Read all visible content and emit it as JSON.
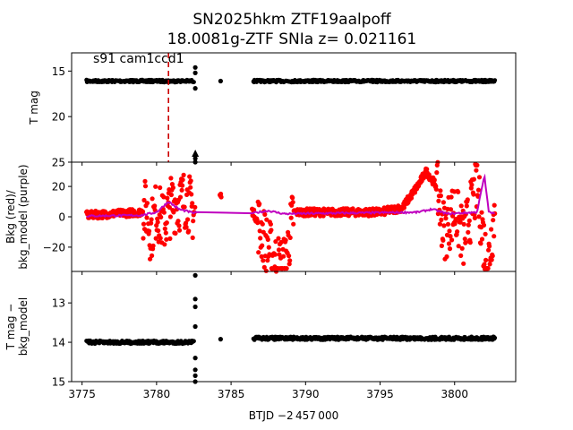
{
  "title_line1": "SN2025hkm  ZTF19aalpoff",
  "title_line2": "18.0081g-ZTF SNIa z= 0.021161",
  "annotation": "s91 cam1ccd1",
  "xlabel": "BTJD −2 457 000",
  "colors": {
    "black": "#000000",
    "red": "#ff0000",
    "purple": "#bf00bf",
    "marker": "#cc0000"
  },
  "chart_data": [
    {
      "type": "scatter",
      "ylabel": "T mag",
      "xlim": [
        3774.3,
        3804.1
      ],
      "ylim": [
        25,
        13
      ],
      "yinverted": true,
      "xticks": [
        3775,
        3780,
        3785,
        3790,
        3795,
        3800
      ],
      "yticks": [
        15,
        20,
        25
      ],
      "vline": {
        "x": 3780.8,
        "style": "dashed",
        "color": "red"
      },
      "series": [
        {
          "segments": [
            [
              3775.3,
              3782.5,
              16.1
            ],
            [
              3786.5,
              3802.7,
              16.1
            ]
          ],
          "color": "black"
        },
        {
          "points": [
            [
              3784.3,
              16.1
            ],
            [
              3782.6,
              14.6
            ],
            [
              3782.6,
              15.2
            ],
            [
              3782.6,
              16.9
            ],
            [
              3782.6,
              24.6
            ],
            [
              3782.6,
              25.0
            ]
          ],
          "color": "black"
        }
      ]
    },
    {
      "type": "scatter",
      "ylabel": "Bkg (red)/ bkg_model (purple)",
      "xlim": [
        3774.3,
        3804.1
      ],
      "ylim": [
        -36,
        36
      ],
      "xticks": [
        3775,
        3780,
        3785,
        3790,
        3795,
        3800
      ],
      "yticks": [
        -20,
        0,
        20
      ],
      "series": [
        {
          "name": "Bkg",
          "color": "red",
          "profile": [
            [
              3775.3,
              1
            ],
            [
              3778.9,
              3
            ],
            [
              3779.3,
              5
            ],
            [
              3779.6,
              -10
            ],
            [
              3780.0,
              5
            ],
            [
              3780.5,
              -5
            ],
            [
              3781.0,
              8
            ],
            [
              3782.0,
              12
            ],
            [
              3782.5,
              2
            ],
            [
              3784.3,
              14
            ],
            [
              3786.5,
              3
            ],
            [
              3787.4,
              -18
            ],
            [
              3788.0,
              -30
            ],
            [
              3788.6,
              -33
            ],
            [
              3789.2,
              3
            ],
            [
              3795.0,
              3
            ],
            [
              3796.5,
              6
            ],
            [
              3797.5,
              20
            ],
            [
              3798.1,
              30
            ],
            [
              3798.8,
              20
            ],
            [
              3799.3,
              -10
            ],
            [
              3800.0,
              5
            ],
            [
              3800.6,
              -15
            ],
            [
              3801.5,
              20
            ],
            [
              3802.2,
              -35
            ],
            [
              3802.7,
              5
            ]
          ]
        },
        {
          "name": "bkg_model",
          "color": "purple",
          "profile": [
            [
              3775.3,
              0.5
            ],
            [
              3779.0,
              1
            ],
            [
              3780.0,
              3
            ],
            [
              3780.8,
              10
            ],
            [
              3781.5,
              5
            ],
            [
              3782.5,
              2.5
            ],
            [
              3786.5,
              2.5
            ],
            [
              3787.5,
              4
            ],
            [
              3788.5,
              2
            ],
            [
              3789.0,
              2
            ],
            [
              3797.5,
              3
            ],
            [
              3798.5,
              5
            ],
            [
              3799.5,
              2
            ],
            [
              3801.5,
              3
            ],
            [
              3802.0,
              27
            ],
            [
              3802.3,
              3
            ],
            [
              3802.7,
              2
            ]
          ]
        }
      ]
    },
    {
      "type": "scatter",
      "ylabel": "T mag − bkg_model",
      "xlim": [
        3774.3,
        3804.1
      ],
      "ylim": [
        15,
        12.2
      ],
      "yinverted": true,
      "xticks": [
        3775,
        3780,
        3785,
        3790,
        3795,
        3800
      ],
      "yticks": [
        13,
        14,
        15
      ],
      "series": [
        {
          "segments": [
            [
              3775.3,
              3782.5,
              14.0
            ],
            [
              3786.5,
              3802.7,
              13.9
            ]
          ],
          "color": "black"
        },
        {
          "points": [
            [
              3784.3,
              13.92
            ],
            [
              3782.6,
              12.3
            ],
            [
              3782.6,
              12.9
            ],
            [
              3782.6,
              13.1
            ],
            [
              3782.6,
              13.6
            ],
            [
              3782.6,
              14.4
            ],
            [
              3782.6,
              14.7
            ],
            [
              3782.6,
              14.85
            ],
            [
              3782.6,
              15.0
            ]
          ],
          "color": "black"
        }
      ]
    }
  ]
}
